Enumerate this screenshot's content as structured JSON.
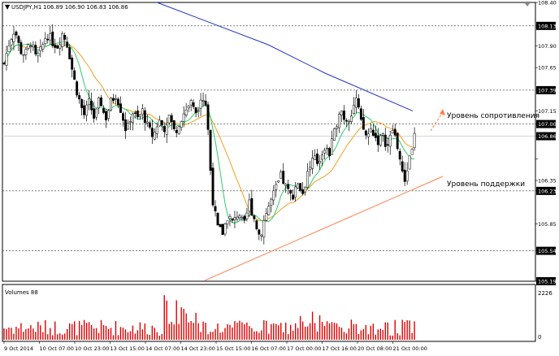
{
  "header": {
    "symbol": "USDJPY,H1",
    "ohlc": "106.89 106.90 106.83 106.86"
  },
  "price_axis": {
    "ticks": [
      "108.40",
      "108.13",
      "107.90",
      "107.65",
      "107.39",
      "107.15",
      "107.00",
      "106.86",
      "106.60",
      "106.35",
      "106.23",
      "105.85",
      "105.54",
      "105.19"
    ],
    "highlighted": [
      "108.13",
      "107.39",
      "107.00",
      "106.86",
      "106.23",
      "105.54",
      "105.19"
    ],
    "hidden_under_label": [
      "106.60"
    ],
    "current_price": "106.86"
  },
  "volume_panel": {
    "label": "Volumes 88",
    "axis_max": "2226",
    "axis_min": "0"
  },
  "time_axis": {
    "labels": [
      "9 Oct 2014",
      "10 Oct 07:00",
      "10 Oct 23:00",
      "13 Oct 15:00",
      "14 Oct 07:00",
      "14 Oct 23:00",
      "15 Oct 15:00",
      "16 Oct 07:00",
      "17 Oct 00:00",
      "17 Oct 16:00",
      "20 Oct 08:00",
      "21 Oct 00:00"
    ]
  },
  "annotations": {
    "resistance": "Уровень сопротивления",
    "support": "Уровень поддержки"
  },
  "colors": {
    "up_candle": "#008000",
    "down_candle": "#8b0000",
    "ma_fast": "#2ecc71",
    "ma_mid": "#f0a020",
    "ma_slow": "#2233cc",
    "trendline": "#ff7f50",
    "volume": "#dd0000"
  },
  "chart_data": {
    "type": "candlestick",
    "instrument": "USDJPY",
    "timeframe": "H1",
    "ylim": [
      105.19,
      108.4
    ],
    "support_line": [
      [
        0.38,
        105.2
      ],
      [
        0.79,
        106.3
      ]
    ],
    "resistance_line_ma": [
      [
        0.29,
        108.4
      ],
      [
        0.77,
        107.15
      ]
    ],
    "close_path": [
      [
        0.0,
        107.7
      ],
      [
        0.01,
        107.95
      ],
      [
        0.02,
        108.1
      ],
      [
        0.03,
        107.85
      ],
      [
        0.04,
        107.8
      ],
      [
        0.05,
        107.95
      ],
      [
        0.06,
        107.75
      ],
      [
        0.07,
        107.85
      ],
      [
        0.08,
        108.05
      ],
      [
        0.09,
        107.95
      ],
      [
        0.1,
        107.9
      ],
      [
        0.11,
        108.05
      ],
      [
        0.12,
        107.9
      ],
      [
        0.13,
        107.55
      ],
      [
        0.14,
        107.3
      ],
      [
        0.15,
        107.1
      ],
      [
        0.16,
        107.25
      ],
      [
        0.17,
        107.05
      ],
      [
        0.18,
        107.3
      ],
      [
        0.19,
        107.05
      ],
      [
        0.2,
        107.25
      ],
      [
        0.21,
        107.35
      ],
      [
        0.22,
        107.15
      ],
      [
        0.23,
        106.9
      ],
      [
        0.24,
        107.15
      ],
      [
        0.25,
        107.05
      ],
      [
        0.26,
        107.15
      ],
      [
        0.27,
        106.95
      ],
      [
        0.28,
        106.85
      ],
      [
        0.29,
        107.05
      ],
      [
        0.3,
        106.95
      ],
      [
        0.31,
        107.1
      ],
      [
        0.32,
        106.9
      ],
      [
        0.33,
        107.05
      ],
      [
        0.34,
        107.15
      ],
      [
        0.35,
        107.25
      ],
      [
        0.36,
        107.1
      ],
      [
        0.37,
        107.35
      ],
      [
        0.38,
        107.2
      ],
      [
        0.39,
        106.2
      ],
      [
        0.4,
        105.8
      ],
      [
        0.41,
        105.75
      ],
      [
        0.42,
        105.95
      ],
      [
        0.43,
        105.85
      ],
      [
        0.44,
        106.0
      ],
      [
        0.45,
        105.8
      ],
      [
        0.46,
        106.1
      ],
      [
        0.47,
        105.9
      ],
      [
        0.48,
        105.7
      ],
      [
        0.49,
        105.95
      ],
      [
        0.5,
        106.1
      ],
      [
        0.51,
        106.25
      ],
      [
        0.52,
        106.4
      ],
      [
        0.53,
        106.25
      ],
      [
        0.54,
        106.15
      ],
      [
        0.55,
        106.35
      ],
      [
        0.56,
        106.2
      ],
      [
        0.57,
        106.45
      ],
      [
        0.58,
        106.6
      ],
      [
        0.59,
        106.55
      ],
      [
        0.6,
        106.75
      ],
      [
        0.61,
        106.65
      ],
      [
        0.62,
        106.9
      ],
      [
        0.63,
        107.2
      ],
      [
        0.64,
        107.05
      ],
      [
        0.65,
        107.1
      ],
      [
        0.66,
        107.3
      ],
      [
        0.67,
        107.0
      ],
      [
        0.68,
        106.85
      ],
      [
        0.69,
        106.95
      ],
      [
        0.7,
        106.8
      ],
      [
        0.71,
        106.85
      ],
      [
        0.72,
        106.75
      ],
      [
        0.73,
        106.95
      ],
      [
        0.74,
        106.7
      ],
      [
        0.75,
        106.3
      ],
      [
        0.76,
        106.6
      ],
      [
        0.77,
        106.86
      ]
    ],
    "annotations": [
      "Уровень сопротивления",
      "Уровень поддержки"
    ]
  }
}
